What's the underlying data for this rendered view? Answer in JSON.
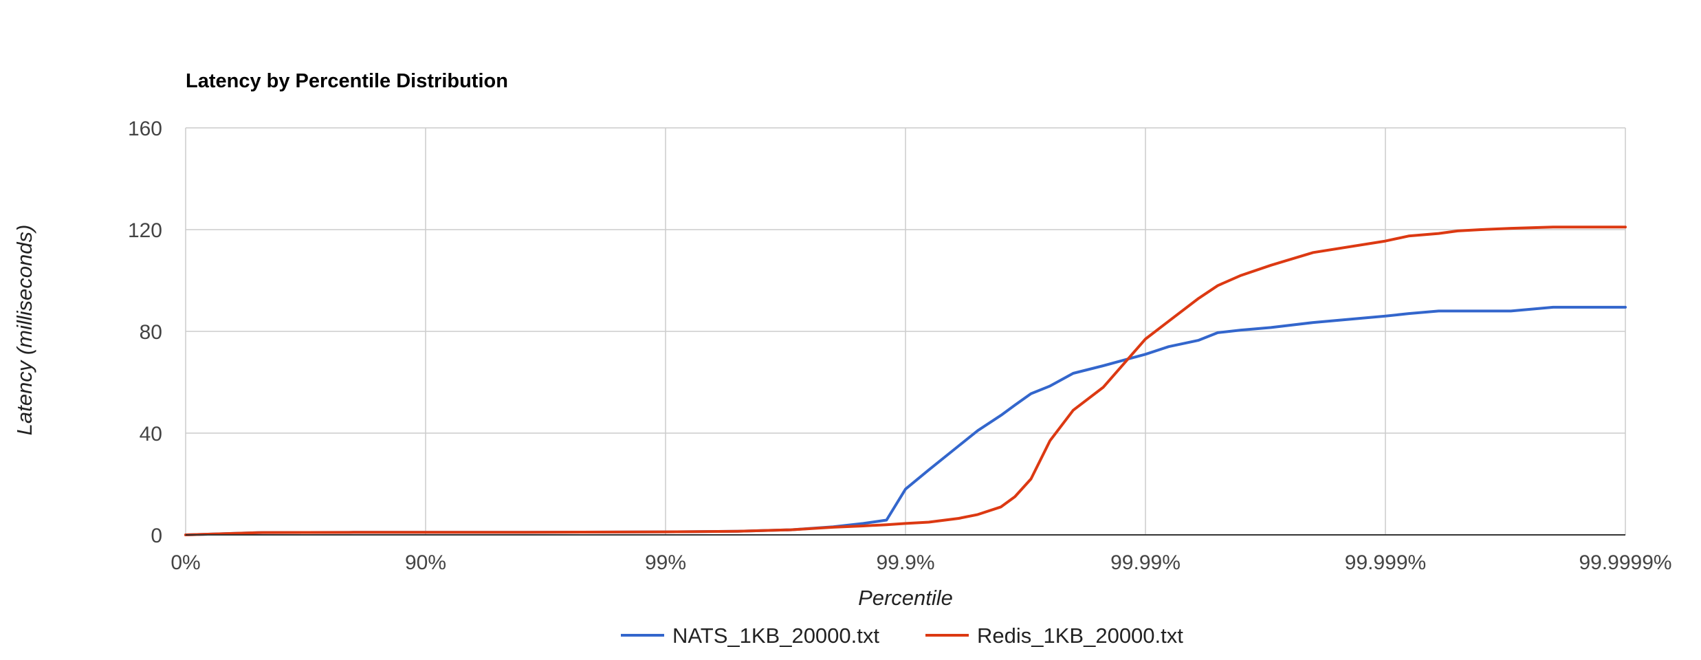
{
  "chart_data": {
    "type": "line",
    "title": "Latency by Percentile Distribution",
    "xlabel": "Percentile",
    "ylabel": "Latency (milliseconds)",
    "x_scale": "log-percentile",
    "x_ticks": [
      "0%",
      "90%",
      "99%",
      "99.9%",
      "99.99%",
      "99.999%",
      "99.9999%"
    ],
    "y_ticks": [
      "0",
      "40",
      "80",
      "120",
      "160"
    ],
    "ylim": [
      0,
      160
    ],
    "grid": true,
    "legend_position": "bottom",
    "x": [
      0,
      50,
      80,
      90,
      95,
      99,
      99.5,
      99.7,
      99.8,
      99.85,
      99.88,
      99.9,
      99.92,
      99.94,
      99.95,
      99.96,
      99.965,
      99.97,
      99.975,
      99.98,
      99.985,
      99.99,
      99.992,
      99.994,
      99.995,
      99.996,
      99.997,
      99.998,
      99.999,
      99.9992,
      99.9994,
      99.9995,
      99.9996,
      99.9997,
      99.9998,
      99.9999
    ],
    "series": [
      {
        "name": "NATS_1KB_20000.txt",
        "color": "#3366cc",
        "values": [
          0,
          0.9,
          1,
          1,
          1,
          1.2,
          1.4,
          2,
          3.2,
          4.5,
          5.8,
          18,
          25.5,
          35,
          41,
          47,
          51,
          55.5,
          58.5,
          63.5,
          66.5,
          71,
          74,
          76.5,
          79.5,
          80.5,
          81.5,
          83.5,
          86,
          87,
          88,
          88,
          88,
          88,
          89.5,
          89.5
        ]
      },
      {
        "name": "Redis_1KB_20000.txt",
        "color": "#dc3912",
        "values": [
          0,
          0.9,
          1,
          1,
          1,
          1.2,
          1.4,
          2,
          3,
          3.5,
          4,
          4.5,
          5,
          6.5,
          8,
          11,
          15,
          22,
          37,
          49,
          58,
          77,
          84,
          93,
          98,
          102,
          106,
          111,
          115.5,
          117.5,
          118.5,
          119.5,
          120,
          120.5,
          121,
          121
        ]
      }
    ]
  }
}
